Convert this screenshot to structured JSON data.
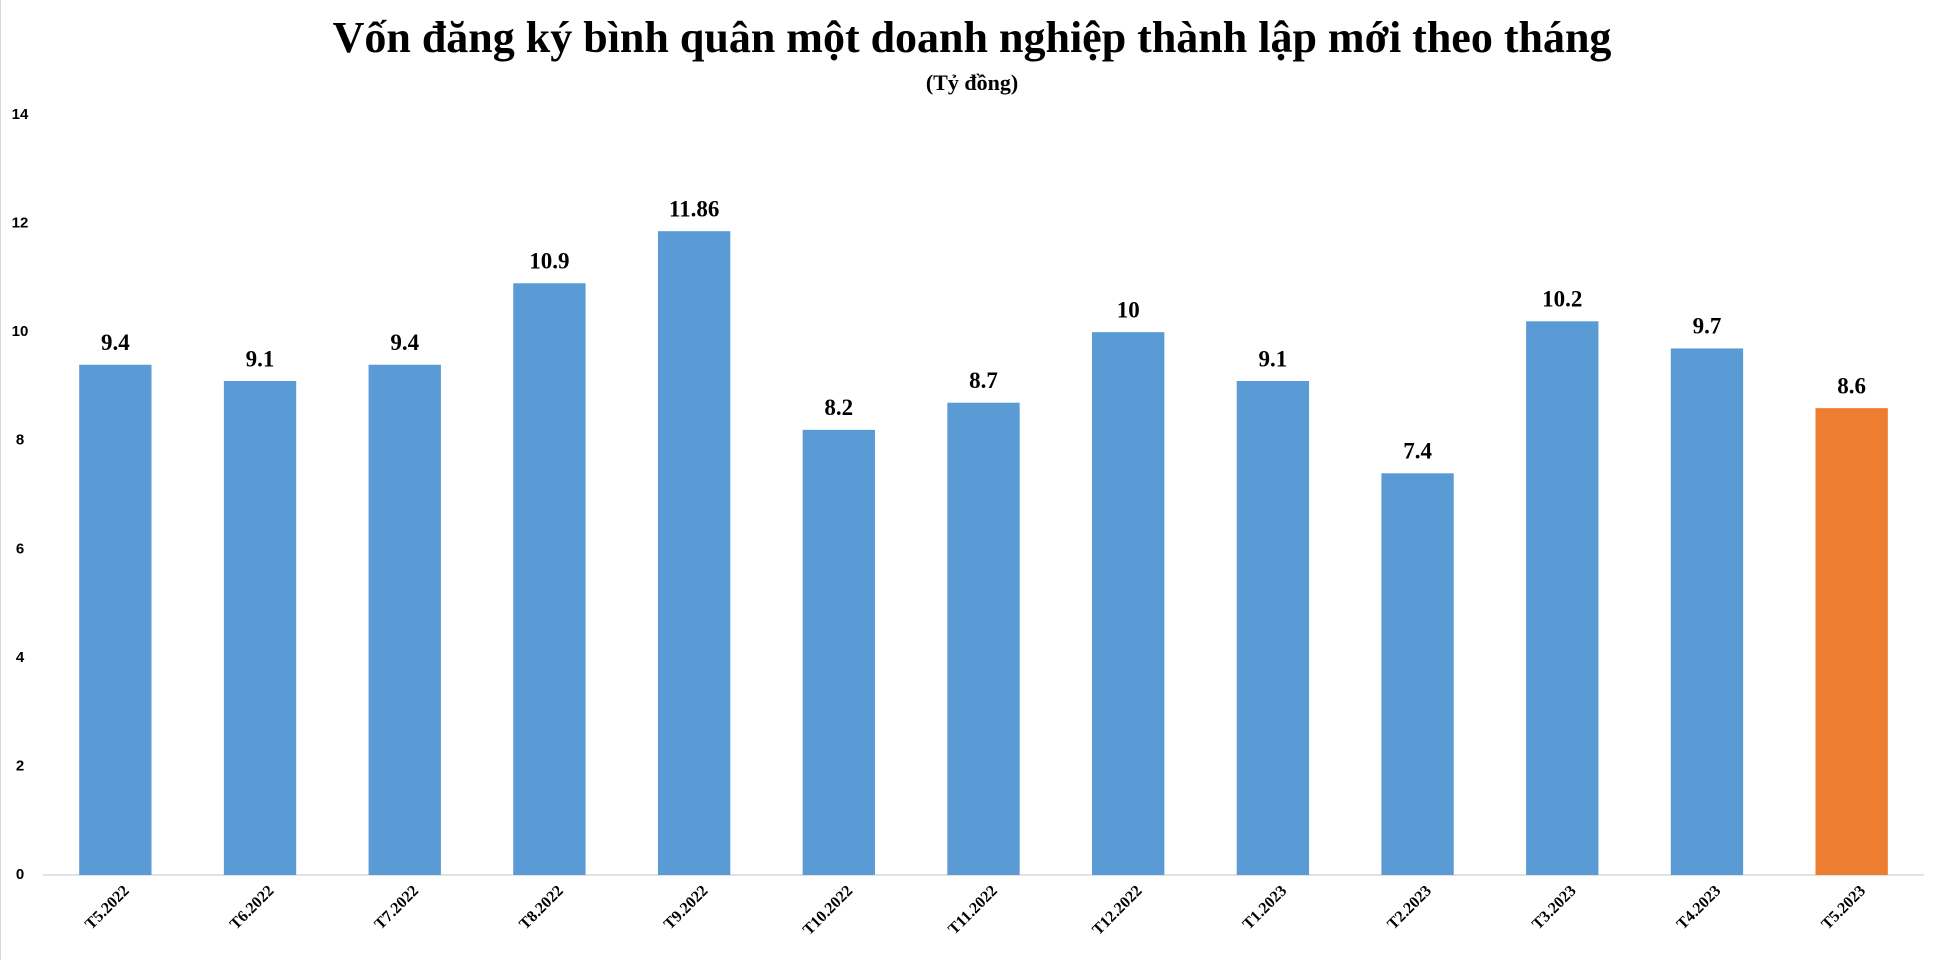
{
  "chart_data": {
    "type": "bar",
    "title": "Vốn đăng ký bình quân một doanh nghiệp thành lập mới theo tháng",
    "subtitle": "(Tỷ đồng)",
    "categories": [
      "T5.2022",
      "T6.2022",
      "T7.2022",
      "T8.2022",
      "T9.2022",
      "T10.2022",
      "T11.2022",
      "T12.2022",
      "T1.2023",
      "T2.2023",
      "T3.2023",
      "T4.2023",
      "T5.2023"
    ],
    "values": [
      9.4,
      9.1,
      9.4,
      10.9,
      11.86,
      8.2,
      8.7,
      10,
      9.1,
      7.4,
      10.2,
      9.7,
      8.6
    ],
    "colors": [
      "#5b9bd5",
      "#5b9bd5",
      "#5b9bd5",
      "#5b9bd5",
      "#5b9bd5",
      "#5b9bd5",
      "#5b9bd5",
      "#5b9bd5",
      "#5b9bd5",
      "#5b9bd5",
      "#5b9bd5",
      "#5b9bd5",
      "#ed7d31"
    ],
    "ylim": [
      0,
      14
    ],
    "yticks": [
      0,
      2,
      4,
      6,
      8,
      10,
      12,
      14
    ],
    "grid": false
  }
}
